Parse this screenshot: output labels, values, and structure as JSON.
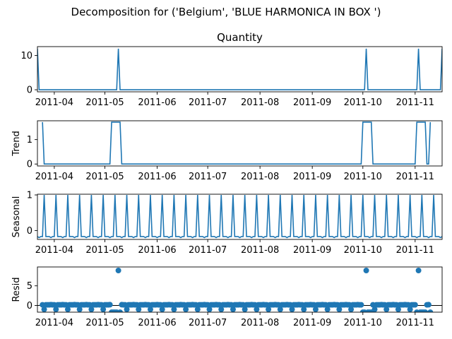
{
  "suptitle": "Decomposition for ('Belgium', 'BLUE HARMONICA IN BOX ')",
  "colors": {
    "series": "#1f77b4",
    "axis": "#000000",
    "background": "#ffffff"
  },
  "x_ticks": [
    "2011-04",
    "2011-05",
    "2011-06",
    "2011-07",
    "2011-08",
    "2011-09",
    "2011-10",
    "2011-11"
  ],
  "chart_data": [
    {
      "type": "line",
      "title": "Quantity",
      "ylabel": "",
      "xlim": [
        "2011-03-22",
        "2011-11-17"
      ],
      "ylim": [
        -0.6,
        12.6
      ],
      "y_ticks": [
        0,
        10
      ],
      "series": [
        {
          "x": [
            "2011-03-22",
            "2011-03-23",
            "2011-05-08",
            "2011-05-09",
            "2011-05-10",
            "2011-10-02",
            "2011-10-03",
            "2011-10-04",
            "2011-11-02",
            "2011-11-03",
            "2011-11-04",
            "2011-11-16",
            "2011-11-17"
          ],
          "y": [
            12,
            0,
            0,
            12,
            0,
            0,
            12,
            0,
            0,
            12,
            0,
            0,
            12
          ]
        }
      ]
    },
    {
      "type": "line",
      "title": "",
      "ylabel": "Trend",
      "xlim": [
        "2011-03-22",
        "2011-11-17"
      ],
      "ylim": [
        -0.08,
        1.77
      ],
      "y_ticks": [
        0,
        1
      ],
      "series": [
        {
          "x": [
            "2011-03-25",
            "2011-03-26",
            "2011-05-04",
            "2011-05-05",
            "2011-05-10",
            "2011-05-11",
            "2011-09-30",
            "2011-10-01",
            "2011-10-06",
            "2011-10-07",
            "2011-11-01",
            "2011-11-02",
            "2011-11-07",
            "2011-11-08",
            "2011-11-09",
            "2011-11-10"
          ],
          "y": [
            1.714,
            0,
            0,
            1.714,
            1.714,
            0,
            0,
            1.714,
            1.714,
            0,
            0,
            1.714,
            1.714,
            0,
            0,
            1.714
          ]
        }
      ]
    },
    {
      "type": "line",
      "title": "",
      "ylabel": "Seasonal",
      "xlim": [
        "2011-03-22",
        "2011-11-17"
      ],
      "ylim": [
        -0.25,
        1.02
      ],
      "y_ticks": [
        0,
        1
      ],
      "period": 7,
      "pattern": [
        -0.17,
        -0.2,
        -0.17,
        -0.17,
        1.0,
        -0.17,
        -0.17
      ],
      "pattern_start": "2011-03-22"
    },
    {
      "type": "scatter",
      "title": "",
      "ylabel": "Resid",
      "xlim": [
        "2011-03-22",
        "2011-11-17"
      ],
      "ylim": [
        -1.7,
        9.8
      ],
      "y_ticks": [
        0,
        5
      ],
      "baseline": 0,
      "sample_start": "2011-03-25",
      "sample_end": "2011-11-10",
      "spikes": [
        {
          "x": "2011-05-09",
          "y": 8.9
        },
        {
          "x": "2011-10-03",
          "y": 8.9
        },
        {
          "x": "2011-11-03",
          "y": 8.9
        }
      ],
      "pattern": [
        0.17,
        0.2,
        0.17,
        0.17,
        -1.0,
        0.17,
        0.17
      ],
      "pattern_start": "2011-03-22",
      "trend_windows": [
        {
          "start": "2011-05-05",
          "end": "2011-05-10",
          "value": -1.714
        },
        {
          "start": "2011-10-01",
          "end": "2011-10-06",
          "value": -1.714
        },
        {
          "start": "2011-11-02",
          "end": "2011-11-07",
          "value": -1.714
        },
        {
          "start": "2011-11-10",
          "end": "2011-11-10",
          "value": -1.714
        }
      ]
    }
  ]
}
